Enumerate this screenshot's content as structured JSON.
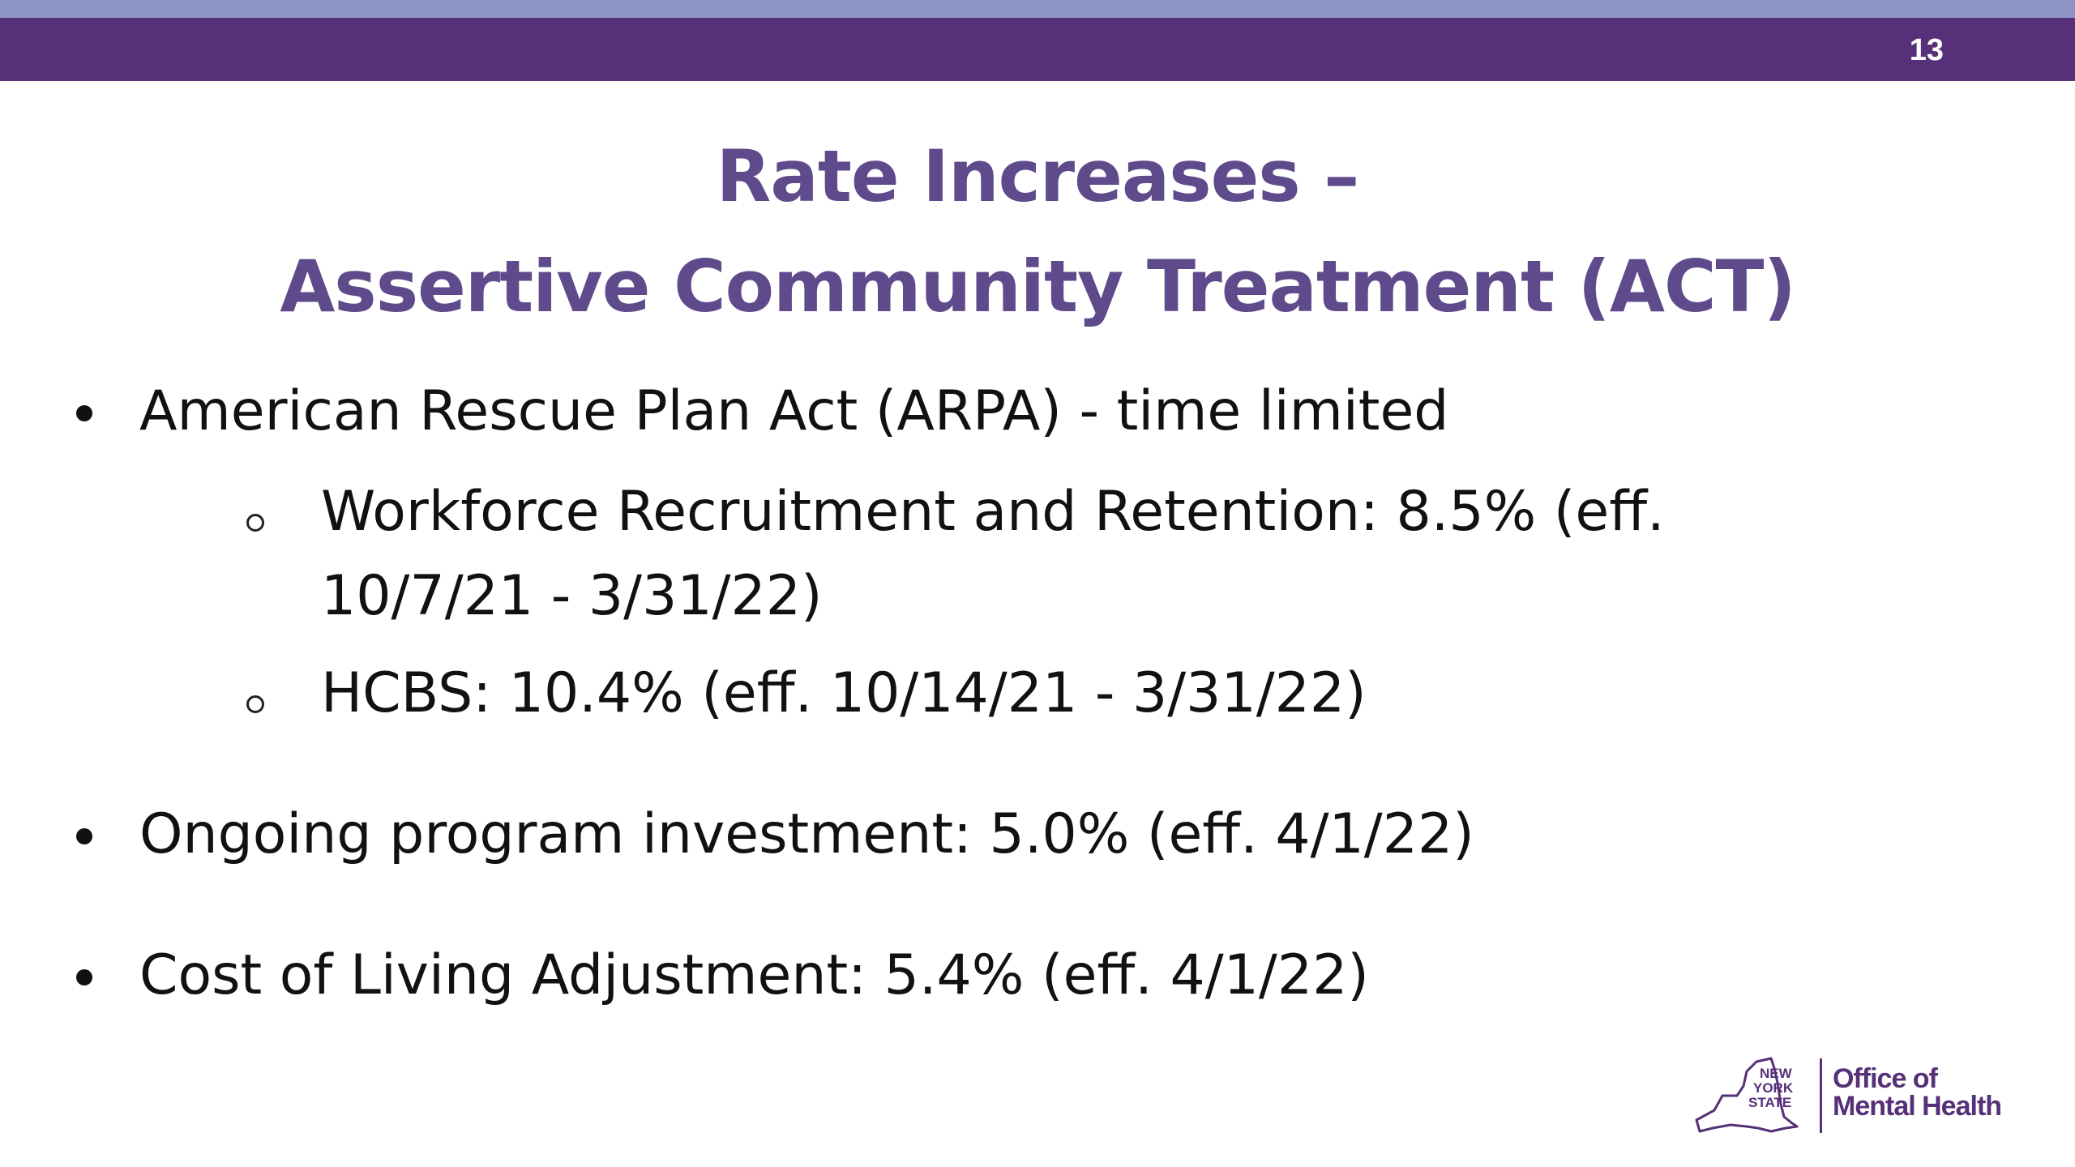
{
  "slide": {
    "number": "13",
    "title_line1": "Rate Increases –",
    "title_line2": "Assertive Community Treatment (ACT)"
  },
  "bullets": [
    {
      "text": "American Rescue Plan Act (ARPA) - time limited",
      "sub_items": [
        {
          "line1": "Workforce Recruitment and Retention: 8.5% (eff.",
          "line2": "10/7/21 - 3/31/22)"
        },
        {
          "line1": "HCBS:  10.4% (eff. 10/14/21 - 3/31/22)"
        }
      ]
    },
    {
      "text": "Ongoing program investment:  5.0% (eff. 4/1/22)"
    },
    {
      "text": "Cost of Living Adjustment:  5.4% (eff. 4/1/22)"
    }
  ],
  "logo": {
    "state_mark": "NEW YORK STATE",
    "org_line1": "Office of",
    "org_line2": "Mental Health"
  },
  "colors": {
    "header_bar": "#563078",
    "top_stripe": "#8b94c2",
    "title": "#5f4a8b",
    "body_text": "#111111"
  }
}
